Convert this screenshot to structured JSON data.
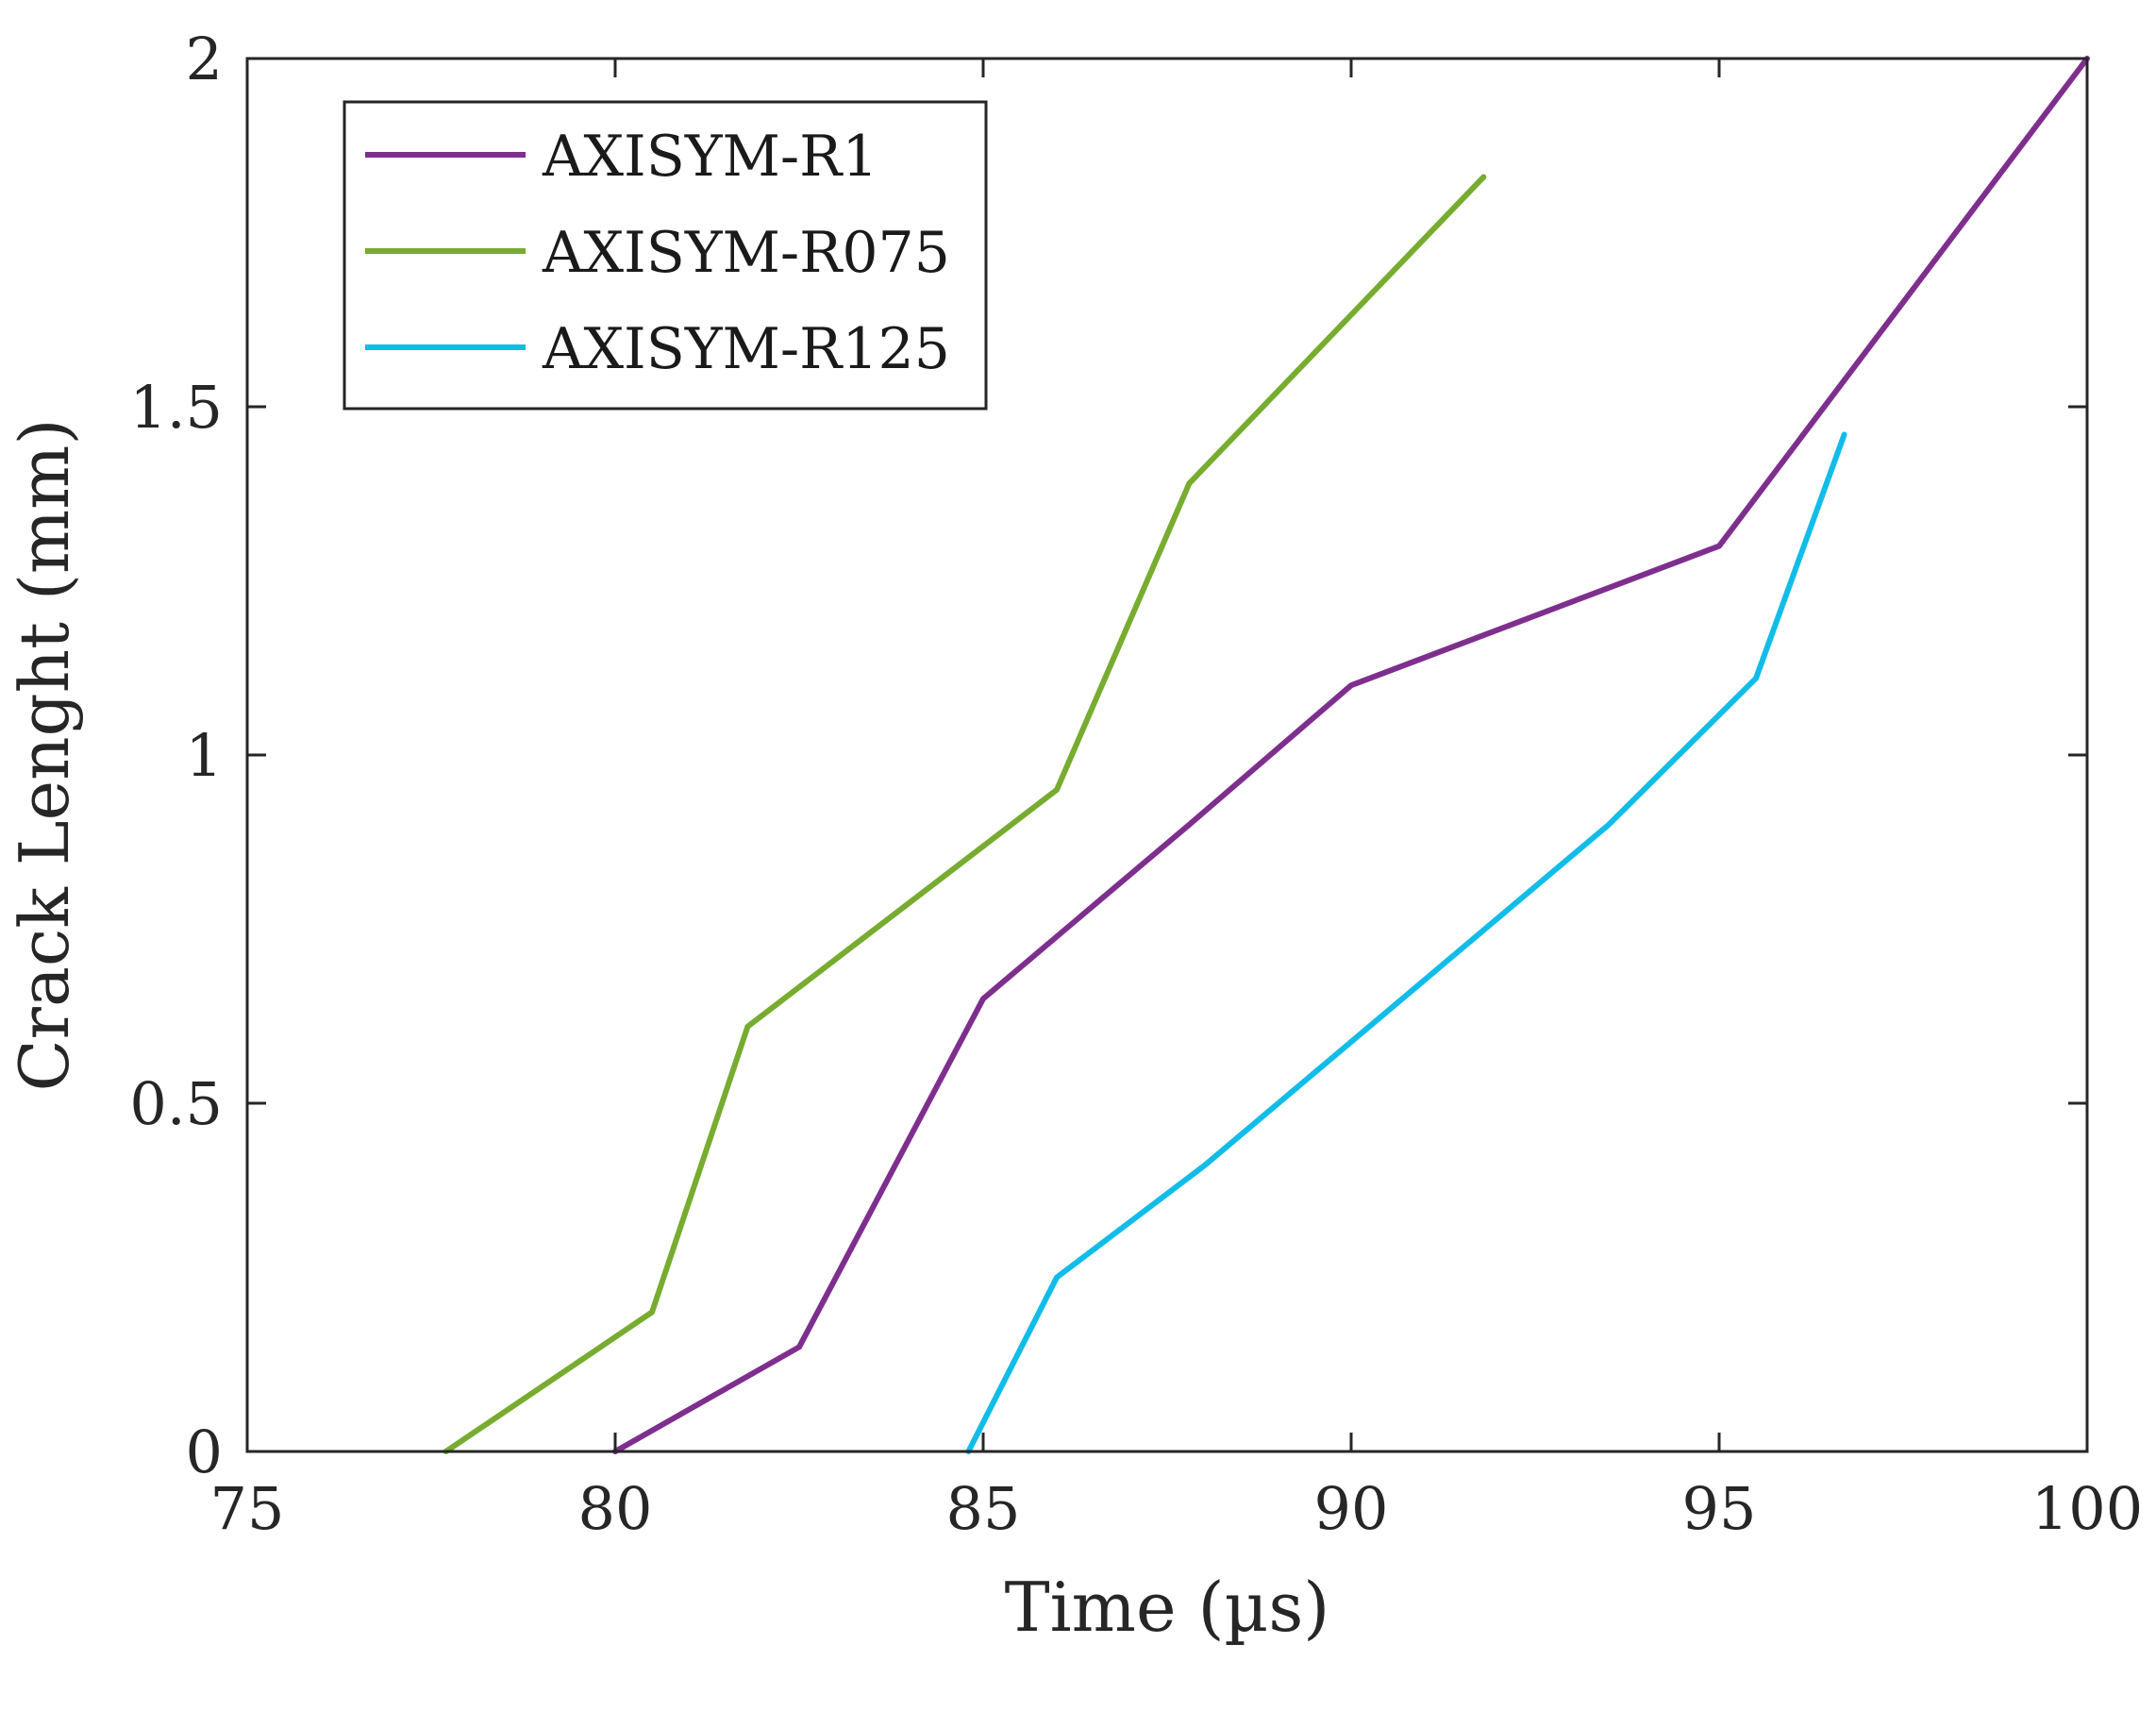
{
  "chart_data": {
    "type": "line",
    "title": "",
    "xlabel": "Time (µs)",
    "ylabel": "Crack Lenght (mm)",
    "xlim": [
      75,
      100
    ],
    "ylim": [
      0,
      2
    ],
    "xticks": [
      75,
      80,
      85,
      90,
      95,
      100
    ],
    "yticks": [
      0,
      0.5,
      1,
      1.5,
      2
    ],
    "grid": false,
    "legend_position": "top-left",
    "series": [
      {
        "name": "AXISYM-R1",
        "color": "#7e2f8e",
        "x": [
          80.0,
          82.5,
          85.0,
          87.8,
          90.0,
          95.0,
          100.0
        ],
        "y": [
          0.0,
          0.15,
          0.65,
          0.9,
          1.1,
          1.3,
          2.0
        ]
      },
      {
        "name": "AXISYM-R075",
        "color": "#77ac30",
        "x": [
          77.7,
          80.5,
          81.8,
          86.0,
          87.8,
          91.8
        ],
        "y": [
          0.0,
          0.2,
          0.61,
          0.95,
          1.39,
          1.83
        ]
      },
      {
        "name": "AXISYM-R125",
        "color": "#11bde8",
        "x": [
          84.8,
          86.0,
          88.0,
          93.5,
          95.5,
          96.7
        ],
        "y": [
          0.0,
          0.25,
          0.41,
          0.9,
          1.11,
          1.46
        ]
      }
    ]
  }
}
